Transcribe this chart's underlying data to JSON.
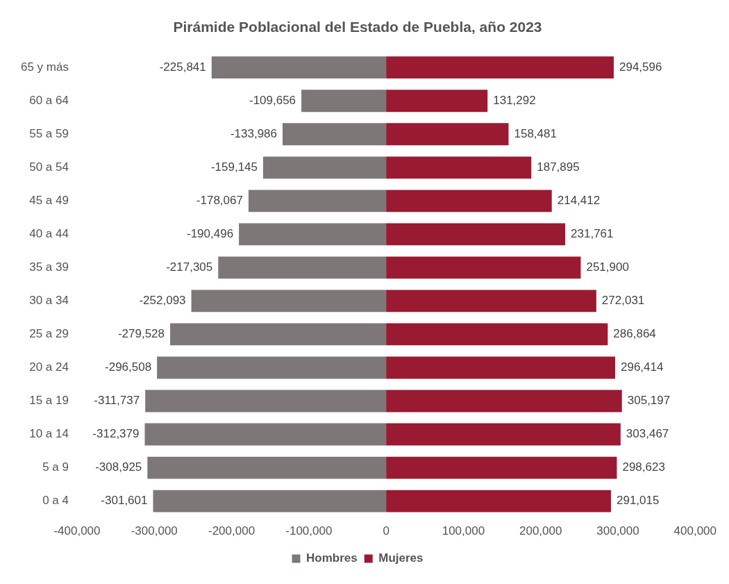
{
  "chart_data": {
    "type": "bar",
    "orientation": "horizontal",
    "stacked": true,
    "title": "Pirámide Poblacional del Estado de Puebla, año 2023",
    "categories": [
      "65 y más",
      "60 a 64",
      "55 a 59",
      "50 a 54",
      "45 a 49",
      "40 a 44",
      "35 a 39",
      "30 a 34",
      "25 a 29",
      "20 a 24",
      "15 a 19",
      "10 a 14",
      "5 a 9",
      "0 a 4"
    ],
    "series": [
      {
        "name": "Hombres",
        "color": "#7d7778",
        "values": [
          -225841,
          -109656,
          -133986,
          -159145,
          -178067,
          -190496,
          -217305,
          -252093,
          -279528,
          -296508,
          -311737,
          -312379,
          -308925,
          -301601
        ],
        "value_labels": [
          "-225,841",
          "-109,656",
          "-133,986",
          "-159,145",
          "-178,067",
          "-190,496",
          "-217,305",
          "-252,093",
          "-279,528",
          "-296,508",
          "-311,737",
          "-312,379",
          "-308,925",
          "-301,601"
        ]
      },
      {
        "name": "Mujeres",
        "color": "#9a1a32",
        "values": [
          294596,
          131292,
          158481,
          187895,
          214412,
          231761,
          251900,
          272031,
          286864,
          296414,
          305197,
          303467,
          298623,
          291015
        ],
        "value_labels": [
          "294,596",
          "131,292",
          "158,481",
          "187,895",
          "214,412",
          "231,761",
          "251,900",
          "272,031",
          "286,864",
          "296,414",
          "305,197",
          "303,467",
          "298,623",
          "291,015"
        ]
      }
    ],
    "xlim": [
      -400000,
      400000
    ],
    "xticks": [
      {
        "value": -400000,
        "label": "-400,000"
      },
      {
        "value": -300000,
        "label": "-300,000"
      },
      {
        "value": -200000,
        "label": "-200,000"
      },
      {
        "value": -100000,
        "label": "-100,000"
      },
      0,
      {
        "value": 100000,
        "label": "100,000"
      },
      {
        "value": 200000,
        "label": "200,000"
      },
      {
        "value": 300000,
        "label": "300,000"
      },
      {
        "value": 400000,
        "label": "400,000"
      }
    ],
    "grid": false,
    "legend": "bottom"
  }
}
